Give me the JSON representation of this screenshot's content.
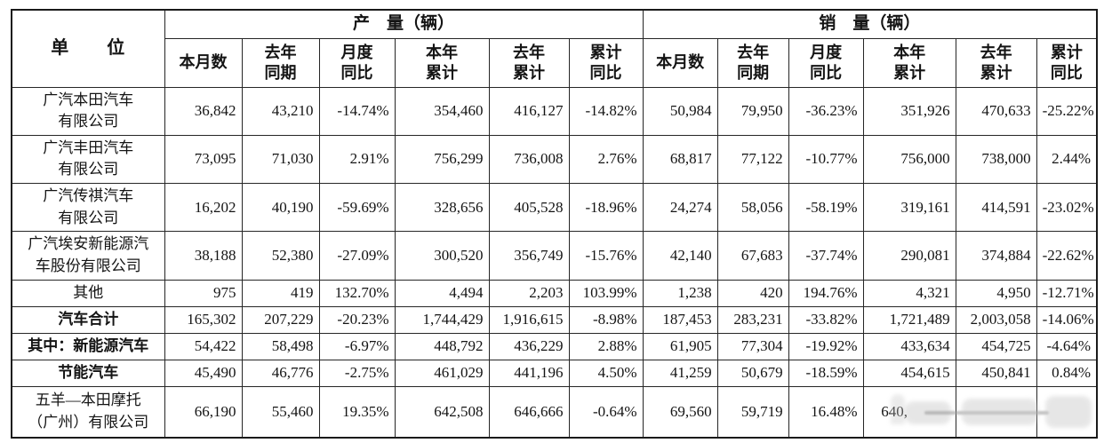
{
  "table": {
    "unit_header": "单　　位",
    "production_header": "产　量（辆）",
    "sales_header": "销　量（辆）",
    "sub_headers": [
      "本月数",
      "去年\n同期",
      "月度\n同比",
      "本年\n累计",
      "去年\n累计",
      "累计\n同比"
    ],
    "rows": [
      {
        "unit": "广汽本田汽车\n有限公司",
        "bold": false,
        "production": [
          "36,842",
          "43,210",
          "-14.74%",
          "354,460",
          "416,127",
          "-14.82%"
        ],
        "sales": [
          "50,984",
          "79,950",
          "-36.23%",
          "351,926",
          "470,633",
          "-25.22%"
        ]
      },
      {
        "unit": "广汽丰田汽车\n有限公司",
        "bold": false,
        "production": [
          "73,095",
          "71,030",
          "2.91%",
          "756,299",
          "736,008",
          "2.76%"
        ],
        "sales": [
          "68,817",
          "77,122",
          "-10.77%",
          "756,000",
          "738,000",
          "2.44%"
        ]
      },
      {
        "unit": "广汽传祺汽车\n有限公司",
        "bold": false,
        "production": [
          "16,202",
          "40,190",
          "-59.69%",
          "328,656",
          "405,528",
          "-18.96%"
        ],
        "sales": [
          "24,274",
          "58,056",
          "-58.19%",
          "319,161",
          "414,591",
          "-23.02%"
        ]
      },
      {
        "unit": "广汽埃安新能源汽\n车股份有限公司",
        "bold": false,
        "production": [
          "38,188",
          "52,380",
          "-27.09%",
          "300,520",
          "356,749",
          "-15.76%"
        ],
        "sales": [
          "42,140",
          "67,683",
          "-37.74%",
          "290,081",
          "374,884",
          "-22.62%"
        ]
      },
      {
        "unit": "其他",
        "bold": false,
        "production": [
          "975",
          "419",
          "132.70%",
          "4,494",
          "2,203",
          "103.99%"
        ],
        "sales": [
          "1,238",
          "420",
          "194.76%",
          "4,321",
          "4,950",
          "-12.71%"
        ]
      },
      {
        "unit": "汽车合计",
        "bold": true,
        "production": [
          "165,302",
          "207,229",
          "-20.23%",
          "1,744,429",
          "1,916,615",
          "-8.98%"
        ],
        "sales": [
          "187,453",
          "283,231",
          "-33.82%",
          "1,721,489",
          "2,003,058",
          "-14.06%"
        ]
      },
      {
        "unit": "其中：新能源汽车",
        "bold": true,
        "production": [
          "54,422",
          "58,498",
          "-6.97%",
          "448,792",
          "436,229",
          "2.88%"
        ],
        "sales": [
          "61,905",
          "77,304",
          "-19.92%",
          "433,634",
          "454,725",
          "-4.64%"
        ]
      },
      {
        "unit": "节能汽车",
        "bold": true,
        "production": [
          "45,490",
          "46,776",
          "-2.75%",
          "461,029",
          "441,196",
          "4.50%"
        ],
        "sales": [
          "41,259",
          "50,679",
          "-18.59%",
          "454,615",
          "450,841",
          "0.84%"
        ]
      },
      {
        "unit": "五羊—本田摩托\n（广州）有限公司",
        "bold": false,
        "production": [
          "66,190",
          "55,460",
          "19.35%",
          "642,508",
          "646,666",
          "-0.64%"
        ],
        "sales": [
          "69,560",
          "59,719",
          "16.48%",
          "640,",
          "",
          ""
        ]
      }
    ]
  }
}
